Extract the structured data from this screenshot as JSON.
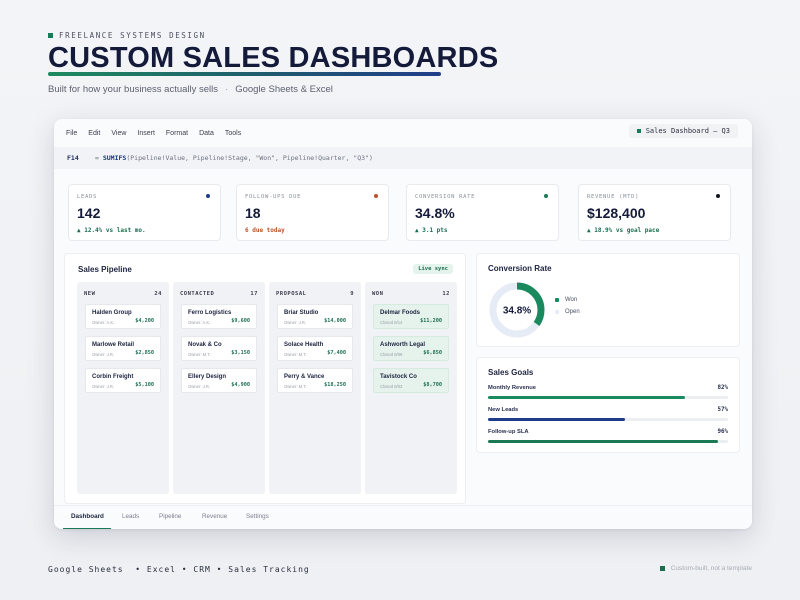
{
  "hero": {
    "eyebrow": "FREELANCE SYSTEMS DESIGN",
    "title": "CUSTOM SALES DASHBOARDS",
    "subtitle_left": "Built for how your business actually sells",
    "separator": "·",
    "subtitle_right": "Google Sheets & Excel"
  },
  "window": {
    "menu": [
      "File",
      "Edit",
      "View",
      "Insert",
      "Format",
      "Data",
      "Tools"
    ],
    "file_title": "Sales Dashboard — Q3",
    "formula_bar": {
      "cell": "F14",
      "eq": "=",
      "fn": "SUMIFS",
      "args": "(Pipeline!Value, Pipeline!Stage, \"Won\", Pipeline!Quarter, \"Q3\")"
    }
  },
  "kpis": [
    {
      "label": "LEADS",
      "value": "142",
      "delta": "▲ 12.4% vs last mo.",
      "indicator_color": "#1f3b8a",
      "delta_color": "#1a6e4e"
    },
    {
      "label": "FOLLOW-UPS DUE",
      "value": "18",
      "delta": "6 due today",
      "indicator_color": "#c0502a",
      "delta_color": "#c0502a"
    },
    {
      "label": "CONVERSION RATE",
      "value": "34.8%",
      "delta": "▲ 3.1 pts",
      "indicator_color": "#1a7a55",
      "delta_color": "#1a6e4e"
    },
    {
      "label": "REVENUE (MTD)",
      "value": "$128,400",
      "delta": "▲ 18.9% vs goal pace",
      "indicator_color": "#111522",
      "delta_color": "#1a6e4e"
    }
  ],
  "pipeline": {
    "title": "Sales Pipeline",
    "live_badge": "Live sync",
    "columns": [
      {
        "name": "NEW",
        "count": "24",
        "cards": [
          {
            "name": "Halden Group",
            "owner": "Owner: A.K.",
            "amount": "$4,200"
          },
          {
            "name": "Marlowe Retail",
            "owner": "Owner: J.R.",
            "amount": "$2,850"
          },
          {
            "name": "Corbin Freight",
            "owner": "Owner: J.R.",
            "amount": "$5,100"
          }
        ]
      },
      {
        "name": "CONTACTED",
        "count": "17",
        "cards": [
          {
            "name": "Ferro Logistics",
            "owner": "Owner: A.K.",
            "amount": "$9,600"
          },
          {
            "name": "Novak & Co",
            "owner": "Owner: M.T.",
            "amount": "$3,150"
          },
          {
            "name": "Ellery Design",
            "owner": "Owner: J.R.",
            "amount": "$4,900"
          }
        ]
      },
      {
        "name": "PROPOSAL",
        "count": "9",
        "cards": [
          {
            "name": "Briar Studio",
            "owner": "Owner: J.R.",
            "amount": "$14,000"
          },
          {
            "name": "Solace Health",
            "owner": "Owner: M.T.",
            "amount": "$7,400"
          },
          {
            "name": "Perry & Vance",
            "owner": "Owner: M.T.",
            "amount": "$18,250"
          }
        ]
      },
      {
        "name": "WON",
        "count": "12",
        "cards": [
          {
            "name": "Delmar Foods",
            "owner": "Closed 8/14",
            "amount": "$11,200",
            "won": true
          },
          {
            "name": "Ashworth Legal",
            "owner": "Closed 8/09",
            "amount": "$6,850",
            "won": true
          },
          {
            "name": "Tavistock Co",
            "owner": "Closed 8/03",
            "amount": "$8,700",
            "won": true
          }
        ]
      }
    ]
  },
  "conversion": {
    "title": "Conversion Rate",
    "value": "34.8%",
    "fraction": 0.348,
    "legend": [
      {
        "label": "Won",
        "color": "#1a8a5e"
      },
      {
        "label": "Open",
        "color": "#e6ecf6"
      }
    ]
  },
  "goals": {
    "title": "Sales Goals",
    "items": [
      {
        "label": "Monthly Revenue",
        "pct_text": "82%",
        "fraction": 0.82,
        "color": "#1a8a5e"
      },
      {
        "label": "New Leads",
        "pct_text": "57%",
        "fraction": 0.57,
        "color": "#1f3b8a"
      },
      {
        "label": "Follow-up SLA",
        "pct_text": "96%",
        "fraction": 0.96,
        "color": "#1a7a55"
      }
    ]
  },
  "tabs": [
    "Dashboard",
    "Leads",
    "Pipeline",
    "Revenue",
    "Settings"
  ],
  "active_tab": "Dashboard",
  "footer": {
    "left": "Google Sheets  • Excel • CRM • Sales Tracking",
    "right": "Custom-built, not a template"
  }
}
